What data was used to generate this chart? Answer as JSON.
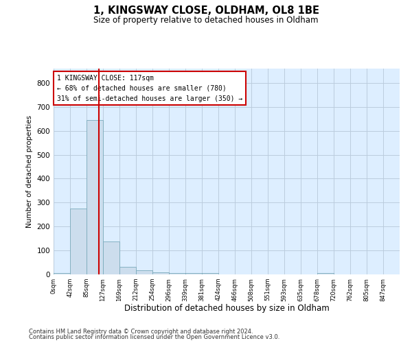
{
  "title": "1, KINGSWAY CLOSE, OLDHAM, OL8 1BE",
  "subtitle": "Size of property relative to detached houses in Oldham",
  "xlabel": "Distribution of detached houses by size in Oldham",
  "ylabel": "Number of detached properties",
  "bar_color": "#ccdded",
  "bar_edge_color": "#7aaabb",
  "background_color": "#ffffff",
  "plot_bg_color": "#ddeeff",
  "grid_color": "#bbccdd",
  "vline_color": "#cc0000",
  "vline_x": 2.73,
  "annotation_box_color": "#cc0000",
  "annotation_lines": [
    "1 KINGSWAY CLOSE: 117sqm",
    "← 68% of detached houses are smaller (780)",
    "31% of semi-detached houses are larger (350) →"
  ],
  "bin_labels": [
    "0sqm",
    "42sqm",
    "85sqm",
    "127sqm",
    "169sqm",
    "212sqm",
    "254sqm",
    "296sqm",
    "339sqm",
    "381sqm",
    "424sqm",
    "466sqm",
    "508sqm",
    "551sqm",
    "593sqm",
    "635sqm",
    "678sqm",
    "720sqm",
    "762sqm",
    "805sqm",
    "847sqm"
  ],
  "bar_heights": [
    5,
    275,
    645,
    138,
    32,
    16,
    10,
    7,
    7,
    5,
    0,
    0,
    0,
    0,
    0,
    0,
    5,
    0,
    0,
    0,
    0
  ],
  "ylim": [
    0,
    860
  ],
  "yticks": [
    0,
    100,
    200,
    300,
    400,
    500,
    600,
    700,
    800
  ],
  "footer_line1": "Contains HM Land Registry data © Crown copyright and database right 2024.",
  "footer_line2": "Contains public sector information licensed under the Open Government Licence v3.0."
}
